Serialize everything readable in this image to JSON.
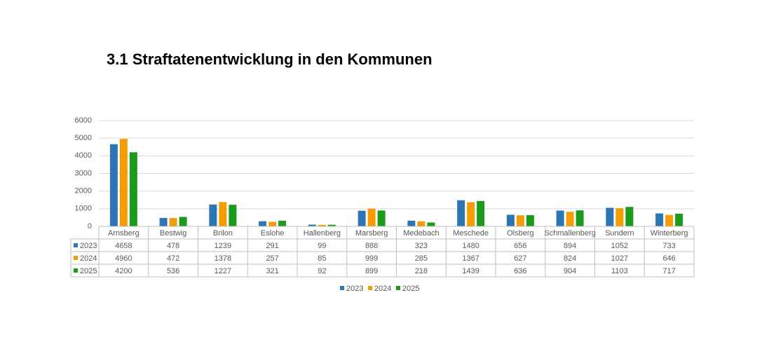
{
  "chart_data": {
    "type": "bar",
    "title": "3.1  Straftatenentwicklung in den Kommunen",
    "categories": [
      "Arnsberg",
      "Bestwig",
      "Brilon",
      "Eslohe",
      "Hallenberg",
      "Marsberg",
      "Medebach",
      "Meschede",
      "Olsberg",
      "Schmallenberg",
      "Sundern",
      "Winterberg"
    ],
    "series": [
      {
        "name": "2023",
        "color": "#2e75b6",
        "values": [
          4658,
          478,
          1239,
          291,
          99,
          886,
          323,
          1480,
          656,
          894,
          1052,
          733
        ]
      },
      {
        "name": "2024",
        "color": "#f59c00",
        "values": [
          4960,
          472,
          1378,
          257,
          85,
          999,
          285,
          1367,
          627,
          824,
          1027,
          646
        ]
      },
      {
        "name": "2025",
        "color": "#1a9c1a",
        "values": [
          4200,
          536,
          1227,
          321,
          92,
          899,
          218,
          1439,
          636,
          904,
          1103,
          717
        ]
      }
    ],
    "ylim": [
      0,
      6000
    ],
    "yticks": [
      0,
      1000,
      2000,
      3000,
      4000,
      5000,
      6000
    ],
    "grid": true,
    "data_table": true,
    "legend": "bottom"
  }
}
